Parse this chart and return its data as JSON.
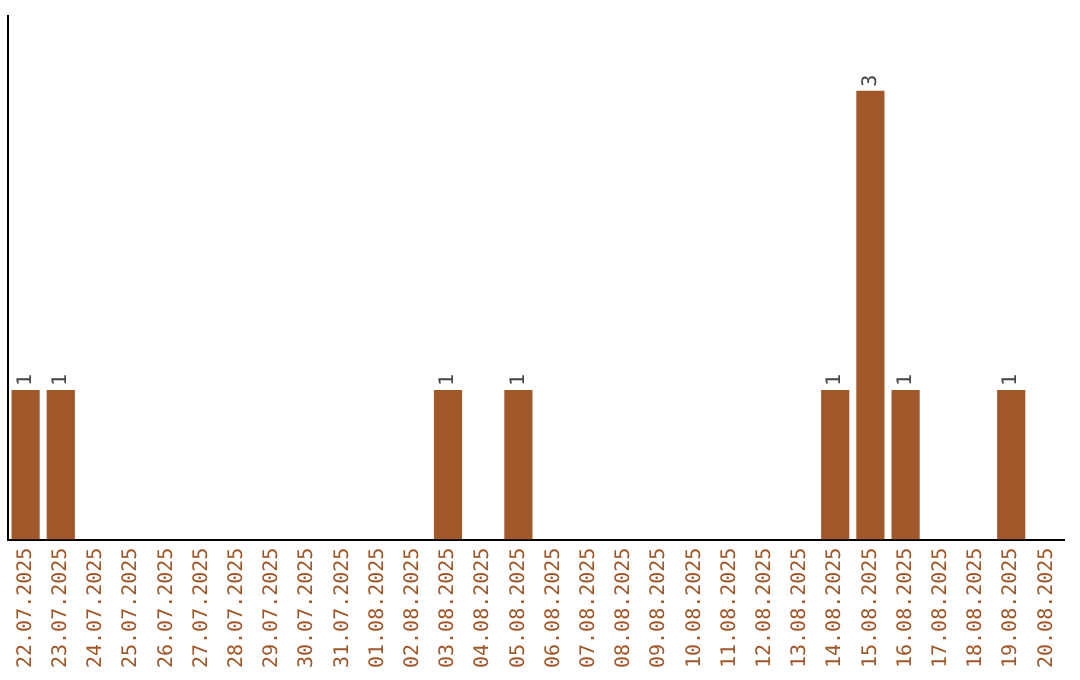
{
  "chart_data": {
    "type": "bar",
    "categories": [
      "22.07.2025",
      "23.07.2025",
      "24.07.2025",
      "25.07.2025",
      "26.07.2025",
      "27.07.2025",
      "28.07.2025",
      "29.07.2025",
      "30.07.2025",
      "31.07.2025",
      "01.08.2025",
      "02.08.2025",
      "03.08.2025",
      "04.08.2025",
      "05.08.2025",
      "06.08.2025",
      "07.08.2025",
      "08.08.2025",
      "09.08.2025",
      "10.08.2025",
      "11.08.2025",
      "12.08.2025",
      "13.08.2025",
      "14.08.2025",
      "15.08.2025",
      "16.08.2025",
      "17.08.2025",
      "18.08.2025",
      "19.08.2025",
      "20.08.2025"
    ],
    "values": [
      1,
      1,
      0,
      0,
      0,
      0,
      0,
      0,
      0,
      0,
      0,
      0,
      1,
      0,
      1,
      0,
      0,
      0,
      0,
      0,
      0,
      0,
      0,
      1,
      3,
      1,
      0,
      0,
      1,
      0
    ],
    "value_labels": [
      "1",
      "1",
      null,
      null,
      null,
      null,
      null,
      null,
      null,
      null,
      null,
      null,
      "1",
      null,
      "1",
      null,
      null,
      null,
      null,
      null,
      null,
      null,
      null,
      "1",
      "3",
      "1",
      null,
      null,
      "1",
      null
    ],
    "color": "#a0582a",
    "tick_labels": "x",
    "grid": false,
    "legend": false
  }
}
